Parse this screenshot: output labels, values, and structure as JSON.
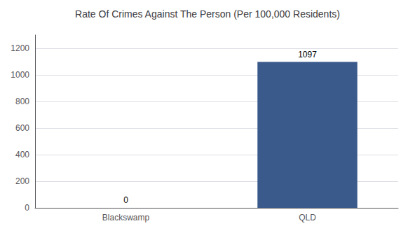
{
  "chart_data": {
    "type": "bar",
    "title": "Rate Of Crimes Against The Person (Per 100,000 Residents)",
    "categories": [
      "Blackswamp",
      "QLD"
    ],
    "values": [
      0,
      1097
    ],
    "color": "#3a5a8c",
    "ylim": [
      0,
      1300
    ],
    "yticks": [
      0,
      200,
      400,
      600,
      800,
      1000,
      1200
    ],
    "grid": true,
    "data_labels": true
  }
}
